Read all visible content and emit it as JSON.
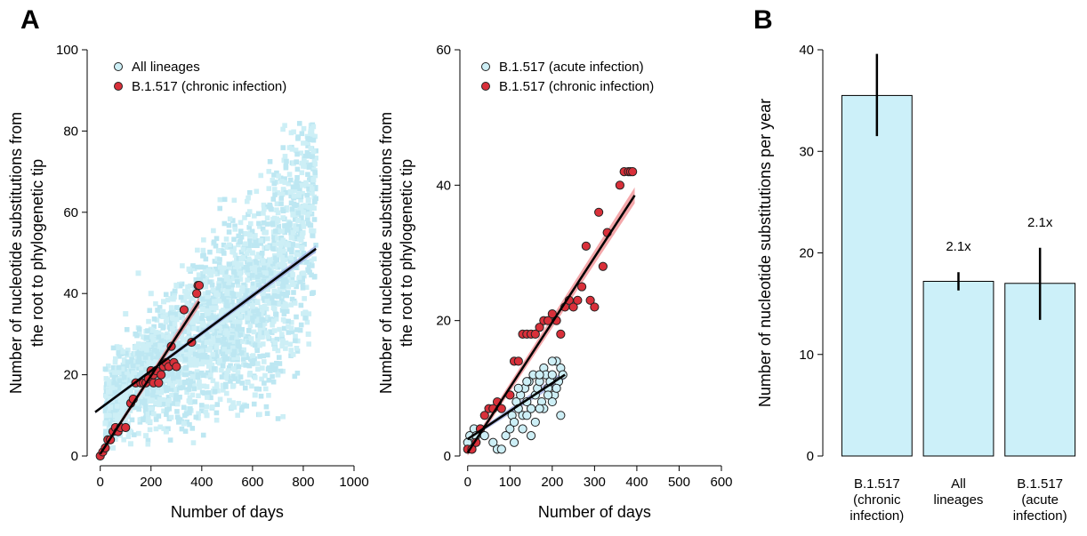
{
  "panel_labels": {
    "a": "A",
    "b": "B"
  },
  "colors": {
    "light_point": "#cdeff6",
    "light_point_dark": "#bde7f2",
    "red_point": "#d9303a",
    "red_band": "#f08a8e",
    "blue_band": "#9aa8e0",
    "bar_fill": "#ccf0f9",
    "fit_line": "#000000"
  },
  "chart_data": [
    {
      "id": "A-left",
      "type": "scatter",
      "title": "",
      "xlabel": "Number of days",
      "ylabel_lines": [
        "Number of nucleotide substitutions from",
        "the root to phylogenetic tip"
      ],
      "xlim": [
        -20,
        1000
      ],
      "ylim": [
        0,
        100
      ],
      "xticks": [
        "0",
        "200",
        "400",
        "600",
        "800",
        "1000"
      ],
      "yticks": [
        "0",
        "20",
        "40",
        "60",
        "80",
        "100"
      ],
      "legend": {
        "position": "top-left",
        "entries": [
          "All lineages",
          "B.1.517 (chronic infection)"
        ]
      },
      "series": [
        {
          "name": "All lineages",
          "style": "dense light scatter",
          "fit": {
            "x0": -20,
            "y0": 10.8,
            "x1": 850,
            "y1": 51.0
          },
          "x": [
            20,
            40,
            60,
            80,
            100,
            120,
            140,
            160,
            180,
            200,
            220,
            240,
            260,
            280,
            300,
            320,
            340,
            360,
            380,
            400,
            420,
            440,
            460,
            480,
            500,
            520,
            540,
            560,
            580,
            600,
            620,
            640,
            660,
            680,
            700,
            720,
            740,
            760,
            780,
            800,
            820,
            840,
            100,
            150,
            200,
            250,
            300,
            350,
            450,
            500,
            550,
            600,
            650,
            700,
            750,
            800,
            830,
            840,
            50,
            120,
            180,
            260,
            330,
            420,
            520,
            610,
            700,
            760,
            820
          ],
          "y": [
            8,
            12,
            10,
            14,
            15,
            16,
            18,
            17,
            20,
            21,
            22,
            20,
            24,
            25,
            23,
            26,
            27,
            28,
            29,
            30,
            28,
            31,
            32,
            33,
            30,
            34,
            35,
            36,
            34,
            37,
            38,
            40,
            41,
            42,
            44,
            48,
            52,
            55,
            58,
            60,
            63,
            68,
            35,
            45,
            40,
            38,
            42,
            46,
            38,
            40,
            45,
            50,
            55,
            58,
            65,
            72,
            80,
            75,
            2,
            3,
            5,
            6,
            8,
            10,
            12,
            15,
            20,
            25,
            30
          ]
        },
        {
          "name": "B.1.517 (chronic infection)",
          "style": "red circles",
          "fit": {
            "x0": 0,
            "y0": 0.5,
            "x1": 390,
            "y1": 38.0
          },
          "x": [
            0,
            10,
            20,
            30,
            40,
            50,
            60,
            70,
            80,
            100,
            120,
            130,
            140,
            160,
            170,
            180,
            190,
            200,
            210,
            210,
            220,
            230,
            240,
            250,
            260,
            270,
            280,
            290,
            300,
            330,
            360,
            380,
            385,
            390
          ],
          "y": [
            0,
            1,
            2,
            4,
            4,
            6,
            7,
            6,
            7,
            7,
            13,
            14,
            18,
            18,
            18,
            18,
            19,
            21,
            18,
            20,
            21,
            18,
            20,
            22,
            23,
            22,
            27,
            23,
            22,
            36,
            28,
            40,
            42,
            42
          ]
        }
      ]
    },
    {
      "id": "A-right",
      "type": "scatter",
      "title": "",
      "xlabel": "Number of days",
      "ylabel_lines": [
        "Number of nucleotide substitutions from",
        "the root to phylogenetic tip"
      ],
      "xlim": [
        -10,
        600
      ],
      "ylim": [
        0,
        60
      ],
      "xticks": [
        "0",
        "100",
        "200",
        "300",
        "400",
        "500",
        "600"
      ],
      "yticks": [
        "0",
        "20",
        "40",
        "60"
      ],
      "legend": {
        "position": "top-left",
        "entries": [
          "B.1.517 (acute infection)",
          "B.1.517 (chronic infection)"
        ]
      },
      "series": [
        {
          "name": "B.1.517 (acute infection)",
          "style": "light circles",
          "fit": {
            "x0": 0,
            "y0": 2.5,
            "x1": 230,
            "y1": 12.0
          },
          "x": [
            0,
            5,
            10,
            15,
            20,
            30,
            40,
            60,
            70,
            80,
            90,
            100,
            105,
            110,
            115,
            120,
            125,
            130,
            135,
            140,
            145,
            150,
            155,
            160,
            165,
            170,
            175,
            180,
            185,
            190,
            195,
            200,
            205,
            210,
            215,
            220,
            225,
            100,
            120,
            140,
            160,
            180,
            200,
            220,
            130,
            150,
            170,
            190,
            210,
            110,
            140,
            170,
            200
          ],
          "y": [
            2,
            3,
            1,
            4,
            3,
            4,
            3,
            2,
            1,
            1,
            3,
            4,
            6,
            5,
            8,
            7,
            9,
            6,
            10,
            8,
            11,
            7,
            12,
            9,
            10,
            11,
            8,
            13,
            12,
            10,
            11,
            12,
            9,
            14,
            11,
            13,
            12,
            9,
            10,
            6,
            5,
            7,
            8,
            6,
            4,
            3,
            7,
            9,
            10,
            2,
            11,
            12,
            14
          ]
        },
        {
          "name": "B.1.517 (chronic infection)",
          "style": "red circles",
          "fit": {
            "x0": 0,
            "y0": 0.5,
            "x1": 395,
            "y1": 38.5
          },
          "x": [
            0,
            10,
            20,
            30,
            40,
            50,
            60,
            70,
            80,
            100,
            110,
            120,
            130,
            140,
            150,
            160,
            170,
            180,
            190,
            200,
            210,
            220,
            230,
            240,
            250,
            260,
            270,
            280,
            290,
            300,
            310,
            320,
            330,
            360,
            370,
            380,
            385,
            390
          ],
          "y": [
            1,
            1,
            2,
            4,
            6,
            7,
            7,
            8,
            7,
            9,
            14,
            14,
            18,
            18,
            18,
            18,
            19,
            20,
            20,
            21,
            20,
            18,
            22,
            23,
            22,
            23,
            25,
            31,
            23,
            22,
            36,
            28,
            33,
            40,
            42,
            42,
            42,
            42
          ]
        }
      ]
    },
    {
      "id": "B",
      "type": "bar",
      "title": "",
      "xlabel": "",
      "ylabel": "Number of nucleotide substitutions per year",
      "ylim": [
        0,
        40
      ],
      "yticks": [
        "0",
        "10",
        "20",
        "30",
        "40"
      ],
      "categories": [
        [
          "B.1.517",
          "(chronic",
          "infection)"
        ],
        [
          "All",
          "lineages"
        ],
        [
          "B.1.517",
          "(acute",
          "infection)"
        ]
      ],
      "values": [
        35.5,
        17.2,
        17.0
      ],
      "errors": [
        [
          31.5,
          39.6
        ],
        [
          16.3,
          18.1
        ],
        [
          13.4,
          20.5
        ]
      ],
      "annotations": [
        "",
        "2.1x",
        "2.1x"
      ]
    }
  ]
}
